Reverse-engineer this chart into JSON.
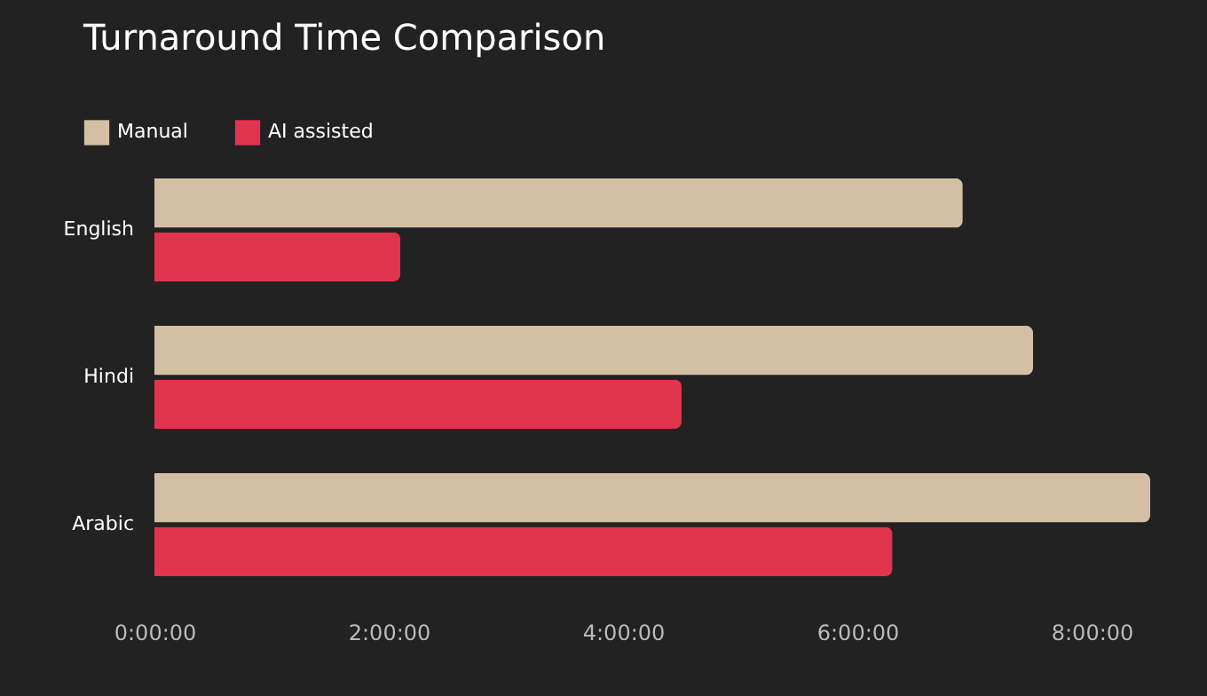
{
  "chart_data": {
    "type": "bar",
    "orientation": "horizontal",
    "title": "Turnaround Time Comparison",
    "categories": [
      "English",
      "Hindi",
      "Arabic"
    ],
    "series": [
      {
        "name": "Manual",
        "color": "#d4bfa3",
        "values": [
          6.9,
          7.5,
          8.5
        ]
      },
      {
        "name": "AI assisted",
        "color": "#e0344f",
        "values": [
          2.1,
          4.5,
          6.3
        ]
      }
    ],
    "xlim": [
      0,
      8.5
    ],
    "xticks": [
      {
        "value": 0,
        "label": "0:00:00"
      },
      {
        "value": 2,
        "label": "2:00:00"
      },
      {
        "value": 4,
        "label": "4:00:00"
      },
      {
        "value": 6,
        "label": "6:00:00"
      },
      {
        "value": 8,
        "label": "8:00:00"
      }
    ],
    "grid": false,
    "legend": "top left"
  }
}
